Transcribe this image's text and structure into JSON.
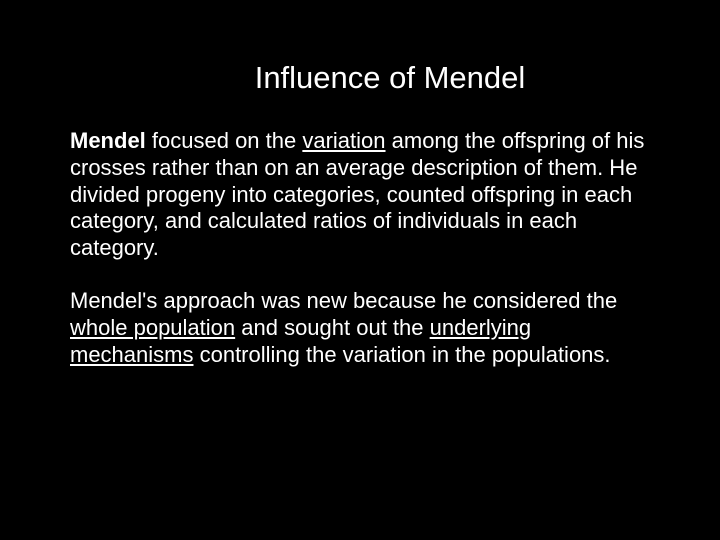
{
  "slide": {
    "title": "Influence of Mendel",
    "p1": {
      "bold_lead": "Mendel",
      "t1": " focused on the ",
      "u1": "variation",
      "t2": " among the offspring of his crosses rather than on an average description of them.  He divided progeny into categories, counted offspring in each category, and calculated ratios of individuals in each category."
    },
    "p2": {
      "t1": " Mendel's approach was new because he considered the ",
      "u1": "whole population",
      "t2": " and sought out the ",
      "u2": "underlying mechanisms",
      "t3": " controlling the variation in the populations."
    },
    "colors": {
      "background": "#000000",
      "text": "#ffffff"
    },
    "typography": {
      "title_fontsize": 31,
      "body_fontsize": 22,
      "font_family": "Arial"
    }
  }
}
